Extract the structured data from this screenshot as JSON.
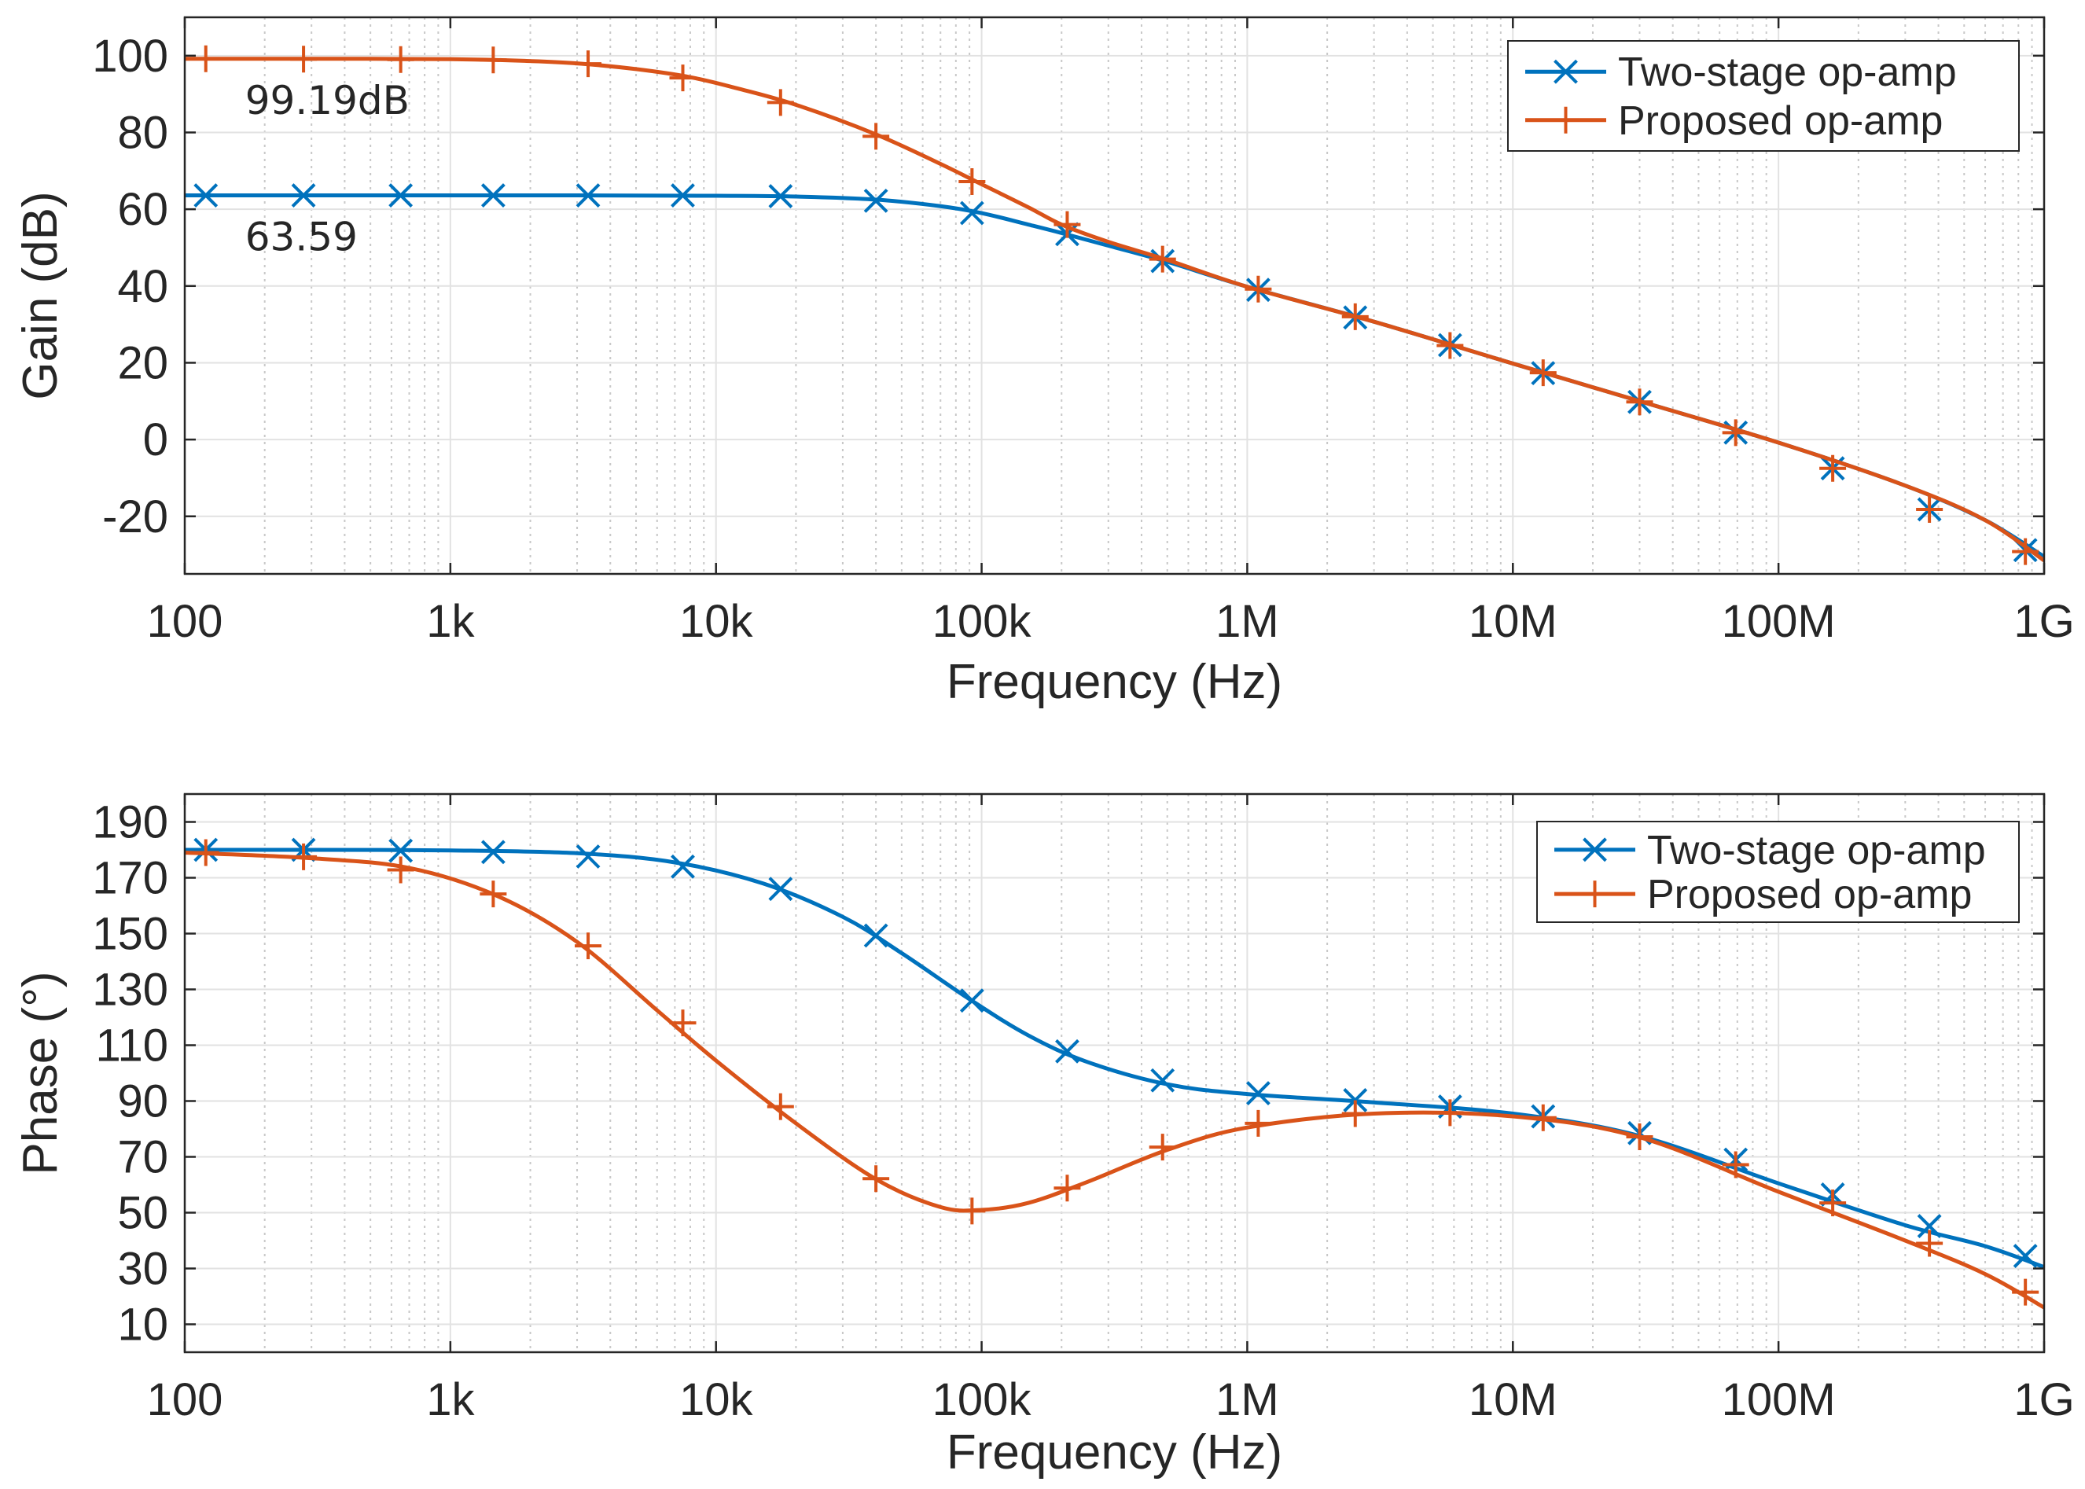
{
  "figure_colors": {
    "series1": "#0072BD",
    "series2": "#D95319",
    "grid": "#c8c8c8",
    "axes": "#262626"
  },
  "chart_data": [
    {
      "type": "line",
      "xscale": "log",
      "xlim": [
        100,
        1000000000
      ],
      "ylim": [
        -35,
        110
      ],
      "xlabel": "Frequency (Hz)",
      "ylabel": "Gain (dB)",
      "xticks": [
        100,
        1000,
        10000,
        100000,
        1000000,
        10000000,
        100000000,
        1000000000
      ],
      "xtick_labels": [
        "100",
        "1k",
        "10k",
        "100k",
        "1M",
        "10M",
        "100M",
        "1G"
      ],
      "yticks": [
        -20,
        0,
        20,
        40,
        60,
        80,
        100
      ],
      "ytick_labels": [
        "-20",
        "0",
        "20",
        "40",
        "60",
        "80",
        "100"
      ],
      "grid": true,
      "minor_grid": true,
      "legend_position": "top-right",
      "series": [
        {
          "name": "Two-stage op-amp",
          "color": "#0072BD",
          "marker": "x",
          "x": [
            100,
            300,
            1000,
            3000,
            10000,
            20000,
            40000,
            70000,
            100000,
            150000,
            200000,
            300000,
            500000,
            1000000,
            3000000,
            10000000,
            30000000,
            100000000,
            300000000,
            600000000,
            1000000000
          ],
          "y": [
            63.6,
            63.6,
            63.6,
            63.6,
            63.5,
            63.3,
            62.5,
            60.8,
            59,
            56,
            53.8,
            50.5,
            46.3,
            39.8,
            30.7,
            19.8,
            10,
            -0.8,
            -12,
            -21,
            -30.5
          ],
          "markers_x": [
            120,
            280,
            650,
            1450,
            3300,
            7500,
            17500,
            40000,
            92000,
            210000,
            480000,
            1100000,
            2550000,
            5800000,
            13000000,
            30000000,
            69000000,
            160000000,
            370000000,
            850000000
          ],
          "markers_y": [
            63.6,
            63.6,
            63.6,
            63.6,
            63.6,
            63.6,
            63.4,
            62.2,
            59,
            53.5,
            46.5,
            39,
            31.8,
            24.6,
            17.3,
            9.8,
            1.8,
            -7.5,
            -18.2,
            -28.8
          ]
        },
        {
          "name": "Proposed op-amp",
          "color": "#D95319",
          "marker": "+",
          "x": [
            100,
            300,
            1000,
            2000,
            3000,
            5000,
            8000,
            12000,
            20000,
            40000,
            70000,
            100000,
            150000,
            200000,
            300000,
            500000,
            1000000,
            3000000,
            10000000,
            30000000,
            100000000,
            300000000,
            600000000,
            1000000000
          ],
          "y": [
            99.2,
            99.2,
            99.1,
            98.6,
            98,
            96.5,
            94.4,
            91.5,
            87.2,
            79.5,
            71.8,
            66.5,
            60.5,
            56,
            51.5,
            46.8,
            39.8,
            30.7,
            19.8,
            10,
            -0.8,
            -12,
            -21,
            -31.5
          ],
          "markers_x": [
            120,
            280,
            650,
            1450,
            3300,
            7500,
            17500,
            40000,
            92000,
            210000,
            480000,
            1100000,
            2550000,
            5800000,
            13000000,
            30000000,
            69000000,
            160000000,
            370000000,
            850000000
          ],
          "markers_y": [
            99.2,
            99.1,
            99,
            98.9,
            97.9,
            94.2,
            87.8,
            79,
            67.2,
            56,
            47,
            39.2,
            32,
            24.5,
            17.4,
            9.8,
            1.8,
            -7.5,
            -18.2,
            -29.2
          ]
        }
      ],
      "annotations": [
        {
          "text": "99.19dB",
          "x": 120,
          "y": 99.19
        },
        {
          "text": "63.59",
          "x": 120,
          "y": 63.59
        }
      ]
    },
    {
      "type": "line",
      "xscale": "log",
      "xlim": [
        100,
        1000000000
      ],
      "ylim": [
        0,
        200
      ],
      "xlabel": "Frequency (Hz)",
      "ylabel": "Phase (°)",
      "xticks": [
        100,
        1000,
        10000,
        100000,
        1000000,
        10000000,
        100000000,
        1000000000
      ],
      "xtick_labels": [
        "100",
        "1k",
        "10k",
        "100k",
        "1M",
        "10M",
        "100M",
        "1G"
      ],
      "yticks": [
        10,
        30,
        50,
        70,
        90,
        110,
        130,
        150,
        170,
        190
      ],
      "ytick_labels": [
        "10",
        "30",
        "50",
        "70",
        "90",
        "110",
        "130",
        "150",
        "170",
        "190"
      ],
      "grid": true,
      "minor_grid": true,
      "legend_position": "top-right",
      "series": [
        {
          "name": "Two-stage op-amp",
          "color": "#0072BD",
          "marker": "x",
          "x": [
            100,
            300,
            1000,
            3000,
            7000,
            15000,
            30000,
            50000,
            90000,
            150000,
            250000,
            500000,
            1000000,
            3000000,
            10000000,
            30000000,
            100000000,
            300000000,
            600000000,
            1000000000
          ],
          "y": [
            180,
            180,
            179.8,
            178.8,
            175.5,
            168,
            156,
            143,
            126.5,
            113.5,
            104,
            96,
            92.5,
            89.5,
            85.5,
            77.5,
            60.5,
            45.5,
            38,
            30.5
          ],
          "markers_x": [
            120,
            280,
            650,
            1450,
            3300,
            7500,
            17500,
            40000,
            92000,
            210000,
            480000,
            1100000,
            2550000,
            5800000,
            13000000,
            30000000,
            69000000,
            160000000,
            370000000,
            850000000
          ],
          "markers_y": [
            180,
            180,
            179.7,
            179.2,
            177.6,
            174,
            166,
            149.3,
            126,
            107.8,
            97.4,
            92.8,
            90.3,
            88,
            84.5,
            78.5,
            69,
            56.5,
            45.2,
            34.5
          ]
        },
        {
          "name": "Proposed op-amp",
          "color": "#D95319",
          "marker": "+",
          "x": [
            100,
            300,
            700,
            1500,
            3000,
            6000,
            10000,
            20000,
            40000,
            70000,
            100000,
            150000,
            250000,
            500000,
            1000000,
            3000000,
            10000000,
            30000000,
            100000000,
            300000000,
            600000000,
            1000000000
          ],
          "y": [
            179,
            177,
            173.5,
            163.5,
            147,
            122.5,
            104.5,
            82,
            62,
            52,
            51,
            53.5,
            61,
            72.5,
            80.5,
            85.5,
            84.5,
            77,
            57.5,
            40,
            28,
            16
          ],
          "markers_x": [
            120,
            280,
            650,
            1450,
            3300,
            7500,
            17500,
            40000,
            92000,
            210000,
            480000,
            1100000,
            2550000,
            5800000,
            13000000,
            30000000,
            69000000,
            160000000,
            370000000,
            850000000
          ],
          "markers_y": [
            179,
            177.5,
            172.8,
            164.2,
            145.6,
            118,
            88,
            62.2,
            50.6,
            58.8,
            73.5,
            82,
            85.5,
            85.8,
            84,
            77.2,
            67.2,
            53.5,
            39,
            21.5
          ]
        }
      ],
      "annotations": []
    }
  ]
}
